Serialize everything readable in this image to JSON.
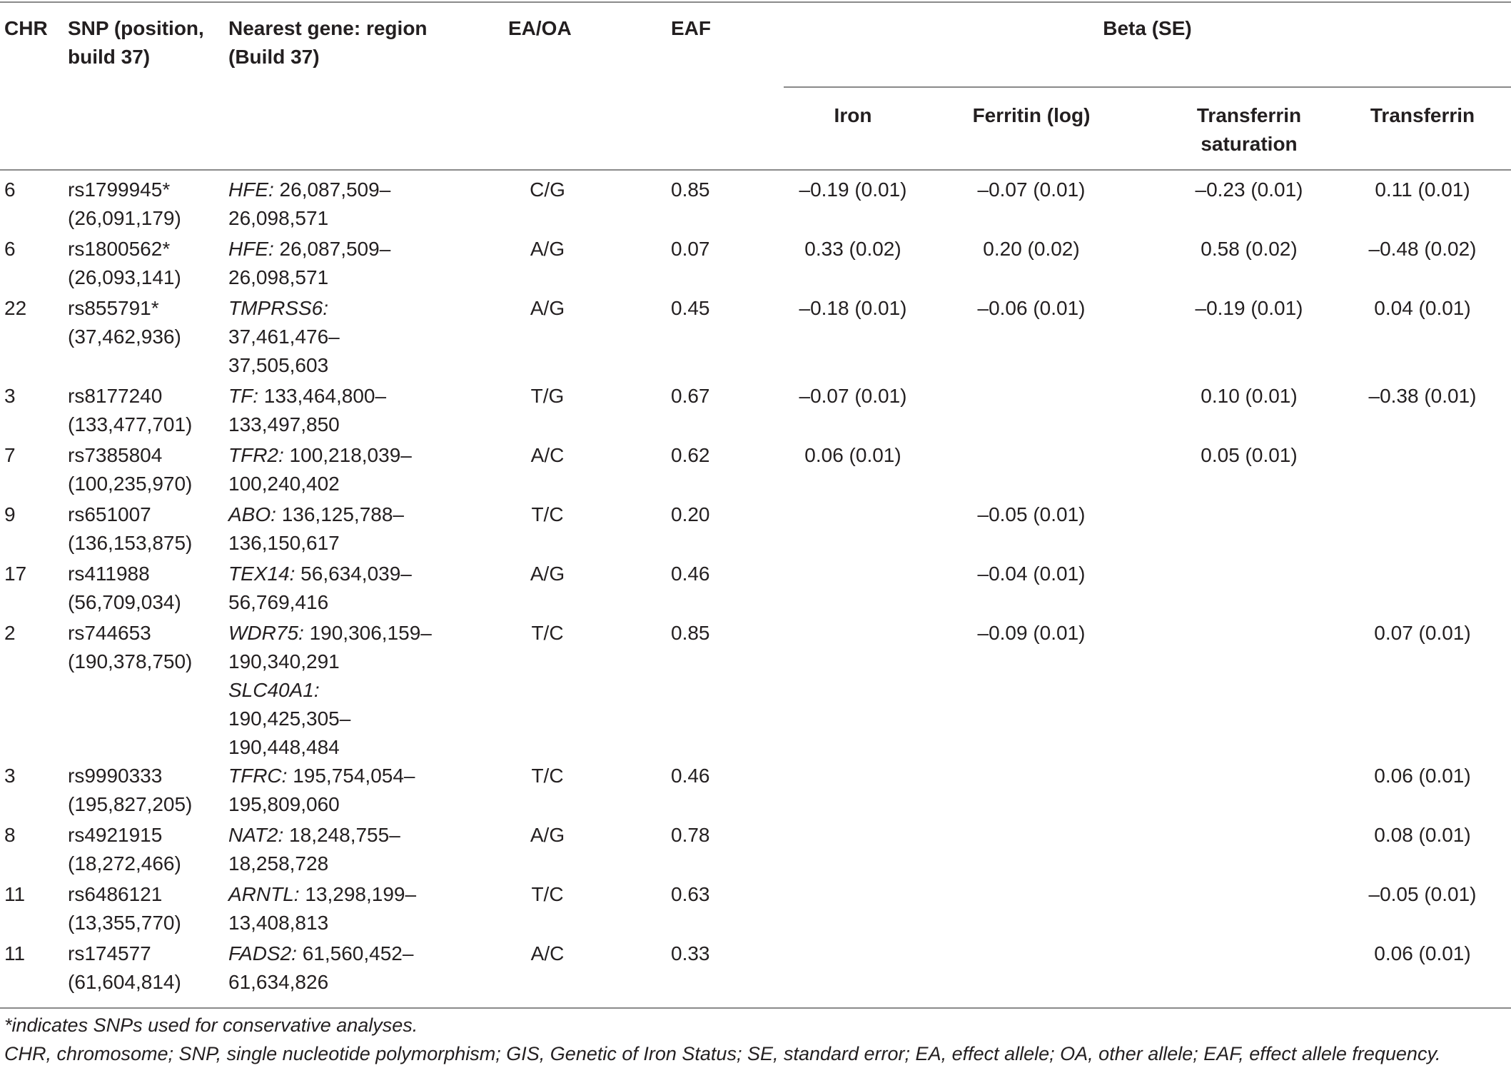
{
  "table": {
    "headers": {
      "chr": "CHR",
      "snp_l1": "SNP (position,",
      "snp_l2": "build 37)",
      "gene_l1": "Nearest gene: region",
      "gene_l2": "(Build 37)",
      "ea_oa": "EA/OA",
      "eaf": "EAF",
      "beta_se": "Beta (SE)",
      "iron": "Iron",
      "ferritin": "Ferritin (log)",
      "tsat_l1": "Transferrin",
      "tsat_l2": "saturation",
      "transferrin": "Transferrin"
    },
    "rows": [
      {
        "chr": "6",
        "snp": "rs1799945*",
        "pos": "(26,091,179)",
        "gene": "HFE:",
        "region": [
          " 26,087,509–",
          "26,098,571"
        ],
        "ea_oa": "C/G",
        "eaf": "0.85",
        "iron": "–0.19 (0.01)",
        "ferritin": "–0.07 (0.01)",
        "tsat": "–0.23 (0.01)",
        "transferrin": "0.11 (0.01)"
      },
      {
        "chr": "6",
        "snp": "rs1800562*",
        "pos": "(26,093,141)",
        "gene": "HFE:",
        "region": [
          " 26,087,509–",
          "26,098,571"
        ],
        "ea_oa": "A/G",
        "eaf": "0.07",
        "iron": "0.33 (0.02)",
        "ferritin": "0.20 (0.02)",
        "tsat": "0.58 (0.02)",
        "transferrin": "–0.48 (0.02)"
      },
      {
        "chr": "22",
        "snp": "rs855791*",
        "pos": "(37,462,936)",
        "gene": "TMPRSS6:",
        "region": [
          "",
          "37,461,476–",
          "37,505,603"
        ],
        "ea_oa": "A/G",
        "eaf": "0.45",
        "iron": "–0.18 (0.01)",
        "ferritin": "–0.06 (0.01)",
        "tsat": "–0.19 (0.01)",
        "transferrin": "0.04 (0.01)"
      },
      {
        "chr": "3",
        "snp": "rs8177240",
        "pos": "(133,477,701)",
        "gene": "TF:",
        "region": [
          " 133,464,800–",
          "133,497,850"
        ],
        "ea_oa": "T/G",
        "eaf": "0.67",
        "iron": "–0.07 (0.01)",
        "ferritin": "",
        "tsat": "0.10 (0.01)",
        "transferrin": "–0.38 (0.01)"
      },
      {
        "chr": "7",
        "snp": "rs7385804",
        "pos": "(100,235,970)",
        "gene": "TFR2:",
        "region": [
          " 100,218,039–",
          "100,240,402"
        ],
        "ea_oa": "A/C",
        "eaf": "0.62",
        "iron": "0.06 (0.01)",
        "ferritin": "",
        "tsat": "0.05 (0.01)",
        "transferrin": ""
      },
      {
        "chr": "9",
        "snp": "rs651007",
        "pos": "(136,153,875)",
        "gene": "ABO:",
        "region": [
          " 136,125,788–",
          "136,150,617"
        ],
        "ea_oa": "T/C",
        "eaf": "0.20",
        "iron": "",
        "ferritin": "–0.05 (0.01)",
        "tsat": "",
        "transferrin": ""
      },
      {
        "chr": "17",
        "snp": "rs411988",
        "pos": "(56,709,034)",
        "gene": "TEX14:",
        "region": [
          " 56,634,039–",
          "56,769,416"
        ],
        "ea_oa": "A/G",
        "eaf": "0.46",
        "iron": "",
        "ferritin": "–0.04 (0.01)",
        "tsat": "",
        "transferrin": ""
      },
      {
        "chr": "2",
        "snp": "rs744653",
        "pos": "(190,378,750)",
        "gene": "WDR75:",
        "region": [
          " 190,306,159–",
          "190,340,291"
        ],
        "gene2": "SLC40A1:",
        "region2": [
          "190,425,305–",
          "190,448,484"
        ],
        "ea_oa": "T/C",
        "eaf": "0.85",
        "iron": "",
        "ferritin": "–0.09 (0.01)",
        "tsat": "",
        "transferrin": "0.07 (0.01)"
      },
      {
        "chr": "3",
        "snp": "rs9990333",
        "pos": "(195,827,205)",
        "gene": "TFRC:",
        "region": [
          " 195,754,054–",
          "195,809,060"
        ],
        "ea_oa": "T/C",
        "eaf": "0.46",
        "iron": "",
        "ferritin": "",
        "tsat": "",
        "transferrin": "0.06 (0.01)"
      },
      {
        "chr": "8",
        "snp": "rs4921915",
        "pos": "(18,272,466)",
        "gene": "NAT2:",
        "region": [
          " 18,248,755–",
          "18,258,728"
        ],
        "ea_oa": "A/G",
        "eaf": "0.78",
        "iron": "",
        "ferritin": "",
        "tsat": "",
        "transferrin": "0.08 (0.01)"
      },
      {
        "chr": "11",
        "snp": "rs6486121",
        "pos": "(13,355,770)",
        "gene": "ARNTL:",
        "region": [
          " 13,298,199–",
          "13,408,813"
        ],
        "ea_oa": "T/C",
        "eaf": "0.63",
        "iron": "",
        "ferritin": "",
        "tsat": "",
        "transferrin": "–0.05 (0.01)"
      },
      {
        "chr": "11",
        "snp": "rs174577",
        "pos": "(61,604,814)",
        "gene": "FADS2:",
        "region": [
          " 61,560,452–",
          "61,634,826"
        ],
        "ea_oa": "A/C",
        "eaf": "0.33",
        "iron": "",
        "ferritin": "",
        "tsat": "",
        "transferrin": "0.06 (0.01)"
      }
    ]
  },
  "footnotes": {
    "note1": "*indicates SNPs used for conservative analyses.",
    "note2": "CHR, chromosome; SNP, single nucleotide polymorphism; GIS, Genetic of Iron Status; SE, standard error; EA, effect allele; OA, other allele; EAF, effect allele frequency."
  }
}
